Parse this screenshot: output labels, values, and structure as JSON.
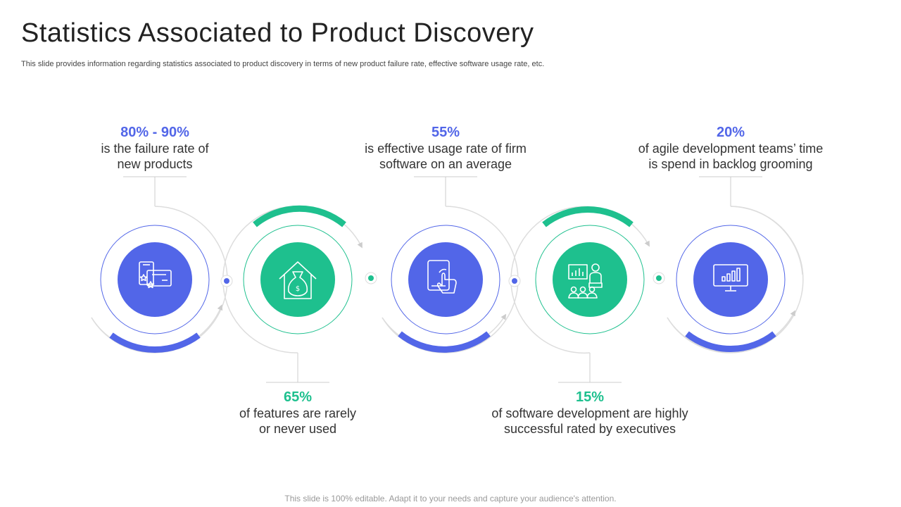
{
  "title": "Statistics Associated to Product Discovery",
  "subtitle": "This slide provides information regarding statistics associated to product discovery in terms of new product failure rate, effective software usage rate, etc.",
  "colors": {
    "blue": "#5266e8",
    "green": "#1ec08e",
    "grey": "#dddddd"
  },
  "stats": [
    {
      "value": "80% - 90%",
      "line1": "is the failure rate of",
      "line2": "new products",
      "color": "blue",
      "icon": "product-cards-icon"
    },
    {
      "value": "65%",
      "line1": "of features are rarely",
      "line2": "or never used",
      "color": "green",
      "icon": "house-money-bag-icon"
    },
    {
      "value": "55%",
      "line1": "is effective usage rate of firm",
      "line2": "software on an average",
      "color": "blue",
      "icon": "tablet-touch-icon"
    },
    {
      "value": "15%",
      "line1": "of software development are highly",
      "line2": "successful rated by executives",
      "color": "green",
      "icon": "presentation-audience-icon"
    },
    {
      "value": "20%",
      "line1": "of agile development teams’ time",
      "line2": "is spend in backlog grooming",
      "color": "blue",
      "icon": "monitor-chart-icon"
    }
  ],
  "footer": "This slide is 100% editable. Adapt it to your needs and capture your audience's attention."
}
